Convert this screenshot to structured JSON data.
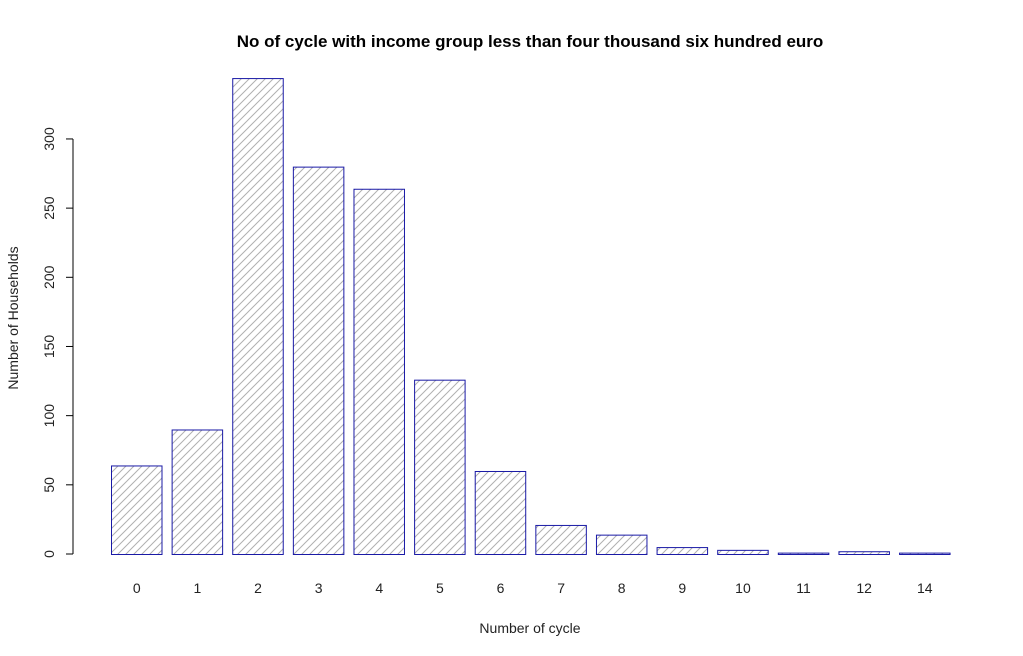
{
  "chart_data": {
    "type": "bar",
    "title": "No of cycle with income group less than four thousand six hundred euro",
    "xlabel": "Number of cycle",
    "ylabel": "Number of Households",
    "categories": [
      "0",
      "1",
      "2",
      "3",
      "4",
      "5",
      "6",
      "7",
      "8",
      "9",
      "10",
      "11",
      "12",
      "14"
    ],
    "values": [
      64,
      90,
      344,
      280,
      264,
      126,
      60,
      21,
      14,
      5,
      3,
      1,
      2,
      1
    ],
    "ylim": [
      0,
      344
    ],
    "yticks": [
      "0",
      "50",
      "100",
      "150",
      "200",
      "250",
      "300"
    ],
    "grid": false,
    "legend": "none",
    "bar_fill": "hatched",
    "colors": {
      "bar_border": "#1a1aa6",
      "hatch": "#b0b0b0",
      "axis": "#000000"
    }
  }
}
